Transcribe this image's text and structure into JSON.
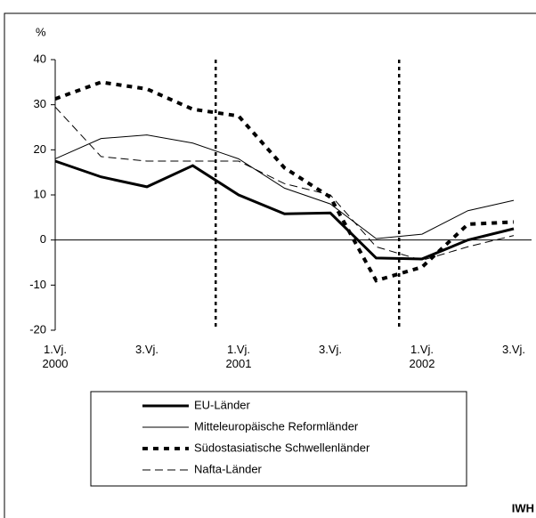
{
  "chart_data": {
    "type": "line",
    "y_label": "%",
    "categories": [
      "1.Vj.\n2000",
      null,
      "3.Vj.",
      null,
      "1.Vj.\n2001",
      null,
      "3.Vj.",
      null,
      "1.Vj.\n2002",
      null,
      "3.Vj."
    ],
    "series": [
      {
        "name": "EU-Länder",
        "color": "#000000",
        "width": 3,
        "dash": "solid",
        "values": [
          17.5,
          14,
          11.8,
          16.5,
          10,
          5.8,
          6,
          -4,
          -4.2,
          0,
          2.5
        ]
      },
      {
        "name": "Mitteleuropäische Reformländer",
        "color": "#000000",
        "width": 1,
        "dash": "solid",
        "values": [
          18,
          22.5,
          23.3,
          21.5,
          18,
          11.5,
          8,
          0.3,
          1.3,
          6.5,
          8.8
        ]
      },
      {
        "name": "Südostasiatische Schwellenländer",
        "color": "#000000",
        "width": 4,
        "dash": "dot",
        "values": [
          31.3,
          35,
          33.5,
          29,
          27.5,
          16,
          9.5,
          -9,
          -6,
          3.5,
          4
        ]
      },
      {
        "name": "Nafta-Länder",
        "color": "#000000",
        "width": 1,
        "dash": "dash",
        "values": [
          29.5,
          18.5,
          17.5,
          17.5,
          17.5,
          12.5,
          10,
          -1.5,
          -4.5,
          -1.5,
          1
        ]
      }
    ],
    "ylim": [
      -20,
      40
    ],
    "yticks": [
      -20,
      -10,
      0,
      10,
      20,
      30,
      40
    ],
    "source": "IWH"
  }
}
